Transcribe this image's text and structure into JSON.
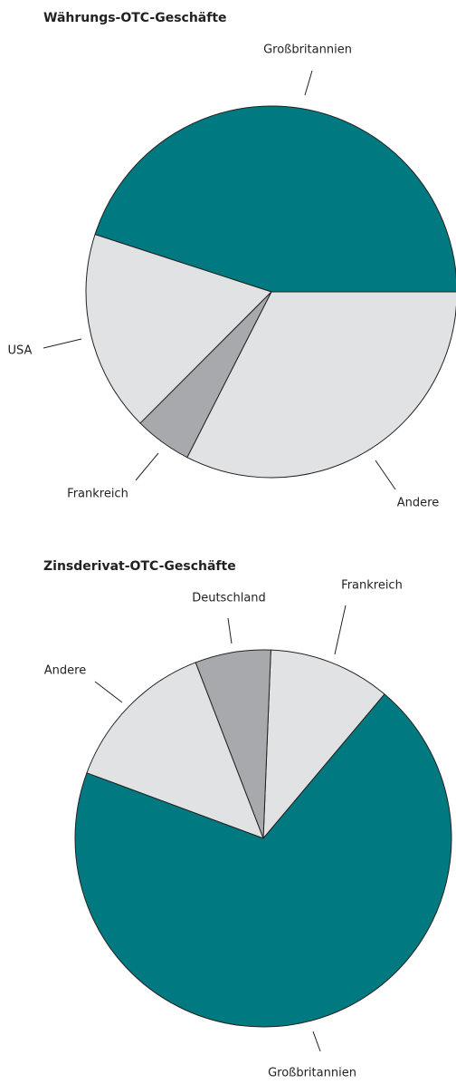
{
  "chart_data": [
    {
      "type": "pie",
      "title": "Währungs-OTC-Geschäfte",
      "categories": [
        "Großbritannien",
        "USA",
        "Frankreich",
        "Andere"
      ],
      "values": [
        45,
        17.5,
        5,
        32.5
      ],
      "colors": [
        "#007a80",
        "#e1e2e4",
        "#a8a9ac",
        "#e1e2e4"
      ]
    },
    {
      "type": "pie",
      "title": "Zinsderivat-OTC-Geschäfte",
      "categories": [
        "Frankreich",
        "Deutschland",
        "Andere",
        "Großbritannien"
      ],
      "values": [
        10.5,
        6.5,
        13.5,
        69.5
      ],
      "colors": [
        "#e1e2e4",
        "#a8a9ac",
        "#e1e2e4",
        "#007a80"
      ]
    }
  ]
}
